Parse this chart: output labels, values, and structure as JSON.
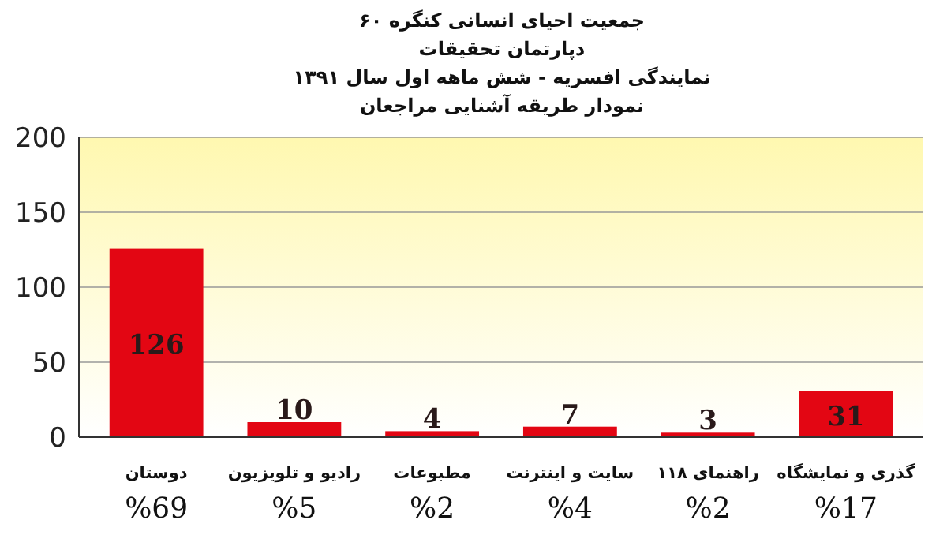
{
  "chart_data": {
    "type": "bar",
    "title": "جمعیت احیای انسانی کنگره ۶۰\nدپارتمان تحقیقات\nنمایندگی افسریه - شش ماهه اول سال ۱۳۹۱\nنمودار طریقه آشنایی مراجعان",
    "categories": [
      "دوستان\n%69",
      "رادیو و تلویزیون\n%5",
      "مطبوعات\n%2",
      "سایت و اینترنت\n%4",
      "راهنمای ۱۱۸\n%2",
      "گذری و نمایشگاه\n%17"
    ],
    "values": [
      126,
      10,
      4,
      7,
      3,
      31
    ],
    "color": "#e30613",
    "ylim": [
      0,
      200
    ],
    "yticks": [
      0,
      50,
      100,
      150,
      200
    ],
    "grid": "y",
    "data_labels": true
  }
}
